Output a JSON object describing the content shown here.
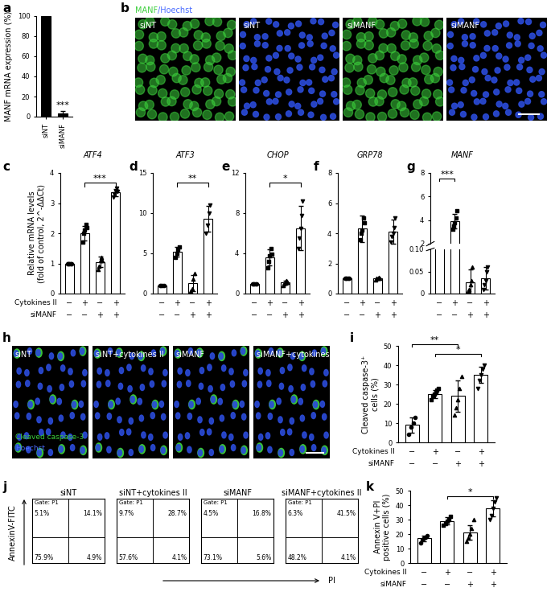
{
  "chart_data": [
    {
      "panel": "a",
      "type": "bar",
      "categories": [
        "siNT",
        "siMANF"
      ],
      "values": [
        100,
        3
      ],
      "errors": [
        0,
        3
      ],
      "color": "#000000",
      "ylabel": "MANF mRNA expression (%)",
      "ylim": [
        0,
        100
      ],
      "yticks": [
        0,
        20,
        40,
        60,
        80,
        100
      ],
      "significance": [
        {
          "bars": [
            1
          ],
          "label": "***"
        }
      ]
    },
    {
      "panel": "b",
      "type": "image",
      "stains": [
        {
          "text": "MANF",
          "color": "#3ccf3c"
        },
        {
          "text": "/Hoechst",
          "color": "#4a6cff"
        }
      ],
      "images": [
        {
          "label": "siNT",
          "channels": [
            "MANF"
          ]
        },
        {
          "label": "siNT",
          "channels": [
            "Hoechst"
          ]
        },
        {
          "label": "siMANF",
          "channels": [
            "MANF"
          ]
        },
        {
          "label": "siMANF",
          "channels": [
            "Hoechst"
          ]
        }
      ]
    },
    {
      "panel": "c",
      "type": "bar",
      "title": "ATF4",
      "categories": [
        null,
        null,
        null,
        null
      ],
      "ylabel": "Relative mRNA levels\n(fold of control, 2^-ΔΔCt)",
      "color": "#ffffff",
      "values": [
        1.0,
        2.0,
        1.05,
        3.35
      ],
      "errors": [
        0.03,
        0.25,
        0.18,
        0.12
      ],
      "points": [
        [
          1,
          1,
          1,
          1,
          1
        ],
        [
          1.7,
          2.0,
          2.1,
          2.3,
          2.2
        ],
        [
          0.8,
          0.9,
          1.1,
          1.2,
          1.1
        ],
        [
          3.2,
          3.3,
          3.4,
          3.5,
          3.4
        ]
      ],
      "ylim": [
        0,
        4
      ],
      "yticks": [
        0,
        1,
        2,
        3,
        4
      ],
      "significance": [
        {
          "bars": [
            1,
            3
          ],
          "label": "***"
        }
      ],
      "condition_labels": [
        "Cytokines II",
        "siMANF"
      ],
      "conditions": [
        [
          "−",
          "+",
          "−",
          "+"
        ],
        [
          "−",
          "−",
          "+",
          "+"
        ]
      ]
    },
    {
      "panel": "d",
      "type": "bar",
      "title": "ATF3",
      "categories": [
        null,
        null,
        null,
        null
      ],
      "color": "#ffffff",
      "values": [
        1.0,
        5.2,
        1.3,
        9.3
      ],
      "errors": [
        0.1,
        0.6,
        1.0,
        1.6
      ],
      "points": [
        [
          1,
          1,
          1,
          1
        ],
        [
          4.5,
          5.0,
          5.5,
          5.8
        ],
        [
          0.3,
          0.6,
          1.8,
          2.5
        ],
        [
          7.5,
          8.5,
          10,
          11
        ]
      ],
      "ylim": [
        0,
        15
      ],
      "yticks": [
        0,
        5,
        10,
        15
      ],
      "significance": [
        {
          "bars": [
            1,
            3
          ],
          "label": "**"
        }
      ],
      "conditions": [
        [
          "−",
          "+",
          "−",
          "+"
        ],
        [
          "−",
          "−",
          "+",
          "+"
        ]
      ]
    },
    {
      "panel": "e",
      "type": "bar",
      "title": "CHOP",
      "categories": [
        null,
        null,
        null,
        null
      ],
      "color": "#ffffff",
      "values": [
        1.0,
        3.6,
        1.1,
        6.5
      ],
      "errors": [
        0.05,
        0.8,
        0.2,
        2.2
      ],
      "points": [
        [
          1,
          1,
          1,
          1,
          1
        ],
        [
          2.6,
          3.2,
          3.8,
          4.5,
          3.9
        ],
        [
          0.8,
          1.0,
          1.2,
          1.3,
          1.1
        ],
        [
          4.5,
          5.5,
          6.5,
          7.8,
          9.2
        ]
      ],
      "ylim": [
        0,
        12
      ],
      "yticks": [
        0,
        4,
        8,
        12
      ],
      "significance": [
        {
          "bars": [
            1,
            3
          ],
          "label": "*"
        }
      ],
      "conditions": [
        [
          "−",
          "+",
          "−",
          "+"
        ],
        [
          "−",
          "−",
          "+",
          "+"
        ]
      ]
    },
    {
      "panel": "f",
      "type": "bar",
      "title": "GRP78",
      "categories": [
        null,
        null,
        null,
        null
      ],
      "color": "#ffffff",
      "values": [
        1.0,
        4.3,
        1.0,
        4.1
      ],
      "errors": [
        0.03,
        0.9,
        0.08,
        0.8
      ],
      "points": [
        [
          1,
          1,
          1,
          1,
          1
        ],
        [
          3.6,
          4.0,
          4.2,
          5.0,
          4.7
        ],
        [
          0.9,
          1.0,
          1.0,
          1.05,
          1.0
        ],
        [
          3.4,
          3.8,
          4.0,
          4.4,
          5.0
        ]
      ],
      "ylim": [
        0,
        8
      ],
      "yticks": [
        0,
        2,
        4,
        6,
        8
      ],
      "conditions": [
        [
          "−",
          "+",
          "−",
          "+"
        ],
        [
          "−",
          "−",
          "+",
          "+"
        ]
      ]
    },
    {
      "panel": "g",
      "type": "bar",
      "title": "MANF",
      "categories": [
        null,
        null,
        null,
        null
      ],
      "color": "#ffffff",
      "values": [
        1.0,
        3.9,
        0.025,
        0.035
      ],
      "errors": [
        0,
        0.6,
        0.03,
        0.025
      ],
      "points": [
        [
          1,
          1,
          1,
          1,
          1
        ],
        [
          3.2,
          3.5,
          3.8,
          4.2,
          4.8
        ],
        [
          0.005,
          0.01,
          0.02,
          0.03,
          0.06
        ],
        [
          0.01,
          0.02,
          0.03,
          0.05,
          0.06
        ]
      ],
      "segments": [
        {
          "ylim": [
            2,
            8
          ],
          "yticks": [
            2,
            4,
            6,
            8
          ]
        },
        {
          "ylim": [
            0,
            0.1
          ],
          "yticks": [
            0,
            0.05,
            {
              "value": 0.1,
              "label": "0.10"
            }
          ]
        }
      ],
      "significance": [
        {
          "bars": [
            0,
            1
          ],
          "label": "***"
        }
      ],
      "conditions": [
        [
          "−",
          "+",
          "−",
          "+"
        ],
        [
          "−",
          "−",
          "+",
          "+"
        ]
      ]
    },
    {
      "panel": "h",
      "type": "image",
      "stains": [
        {
          "text": "Cleaved caspase-3",
          "color": "#3ccf3c"
        },
        {
          "text": "Hoechst",
          "color": "#4a6cff"
        }
      ],
      "images": [
        {
          "label": "siNT",
          "channels": [
            "caspase",
            "Hoechst"
          ]
        },
        {
          "label": "siNT+cytokines II",
          "channels": [
            "caspase",
            "Hoechst"
          ]
        },
        {
          "label": "siMANF",
          "channels": [
            "caspase",
            "Hoechst"
          ]
        },
        {
          "label": "siMANF+cytokines II",
          "channels": [
            "caspase",
            "Hoechst"
          ]
        }
      ]
    },
    {
      "panel": "i",
      "type": "bar",
      "categories": [
        null,
        null,
        null,
        null
      ],
      "color": "#ffffff",
      "ylabel": "Cleaved caspase-3⁺\ncells (%)",
      "values": [
        9,
        25,
        24,
        35
      ],
      "errors": [
        4,
        2,
        8,
        4
      ],
      "points": [
        [
          4,
          8,
          10,
          13
        ],
        [
          22,
          24,
          25,
          26,
          27,
          28
        ],
        [
          14,
          18,
          22,
          28,
          34
        ],
        [
          28,
          32,
          35,
          38,
          40
        ]
      ],
      "ylim": [
        0,
        50
      ],
      "yticks": [
        0,
        10,
        20,
        30,
        40,
        50
      ],
      "significance": [
        {
          "bars": [
            1,
            3
          ],
          "label": "*"
        },
        {
          "bars": [
            0,
            2
          ],
          "label": "**"
        }
      ],
      "condition_labels": [
        "Cytokines II",
        "siMANF"
      ],
      "conditions": [
        [
          "−",
          "+",
          "−",
          "+"
        ],
        [
          "−",
          "−",
          "+",
          "+"
        ]
      ]
    },
    {
      "panel": "j",
      "type": "flow_cytometry",
      "xlabel": "PI",
      "ylabel": "AnnexinV-FITC",
      "tick_labels": false,
      "plots": [
        {
          "title": "siNT",
          "gate": "Gate: P1",
          "values": [
            5.1,
            14.1,
            75.9,
            4.9
          ],
          "value_labels": [
            "5.1%",
            "14.1%",
            "75.9%",
            "4.9%"
          ]
        },
        {
          "title": "siNT+cytokines II",
          "gate": "Gate: P1",
          "values": [
            9.7,
            28.7,
            57.6,
            4.1
          ],
          "value_labels": [
            "9.7%",
            "28.7%",
            "57.6%",
            "4.1%"
          ]
        },
        {
          "title": "siMANF",
          "gate": "Gate: P1",
          "values": [
            4.5,
            16.8,
            73.1,
            5.6
          ],
          "value_labels": [
            "4.5%",
            "16.8%",
            "73.1%",
            "5.6%"
          ]
        },
        {
          "title": "siMANF+cytokines II",
          "gate": "Gate: P1",
          "values": [
            6.3,
            41.5,
            48.2,
            4.1
          ],
          "value_labels": [
            "6.3%",
            "41.5%",
            "48.2%",
            "4.1%"
          ]
        }
      ]
    },
    {
      "panel": "k",
      "type": "bar",
      "categories": [
        null,
        null,
        null,
        null
      ],
      "color": "#ffffff",
      "ylabel": "Annexin V+PI\npositive cells (%)",
      "values": [
        17,
        29,
        21,
        38
      ],
      "errors": [
        2,
        2.5,
        5,
        5.5
      ],
      "points": [
        [
          14,
          16,
          17,
          18,
          19
        ],
        [
          26,
          27,
          29,
          30,
          32
        ],
        [
          15,
          17,
          20,
          24,
          30
        ],
        [
          30,
          33,
          38,
          42,
          45
        ]
      ],
      "ylim": [
        0,
        50
      ],
      "yticks": [
        0,
        10,
        20,
        30,
        40,
        50
      ],
      "significance": [
        {
          "bars": [
            1,
            3
          ],
          "label": "*"
        }
      ],
      "condition_labels": [
        "Cytokines II",
        "siMANF"
      ],
      "conditions": [
        [
          "−",
          "+",
          "−",
          "+"
        ],
        [
          "−",
          "−",
          "+",
          "+"
        ]
      ]
    }
  ]
}
